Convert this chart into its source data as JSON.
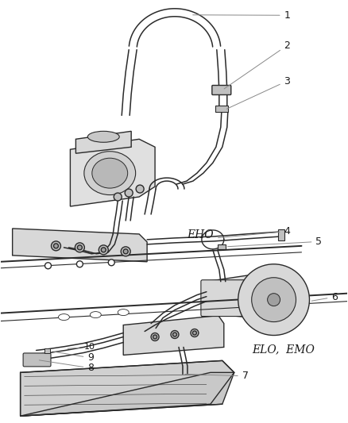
{
  "bg_color": "#ffffff",
  "line_color": "#2a2a2a",
  "gray_fill": "#e8e8e8",
  "gray_dark": "#c0c0c0",
  "label_color": "#1a1a1a",
  "leader_color": "#888888",
  "eho_label": "EHO",
  "elo_emo_label": "ELO,  EMO",
  "figsize": [
    4.38,
    5.33
  ],
  "dpi": 100
}
